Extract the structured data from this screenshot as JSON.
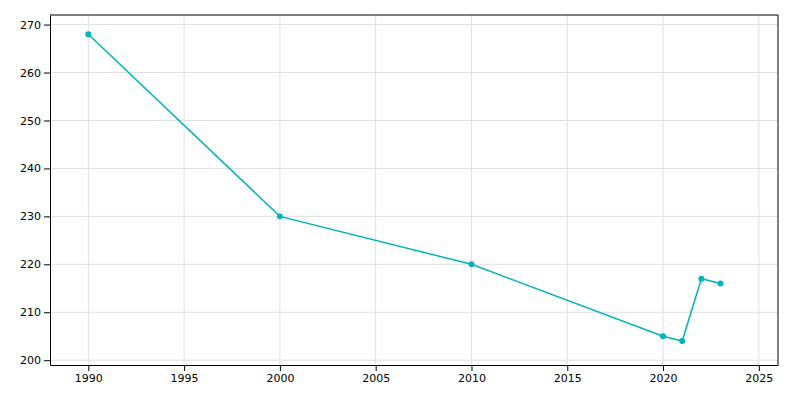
{
  "chart_data": {
    "type": "line",
    "x": [
      1990,
      2000,
      2010,
      2020,
      2021,
      2022,
      2023
    ],
    "values": [
      268,
      230,
      220,
      205,
      204,
      217,
      216
    ],
    "color": "#00b4b8",
    "marker": "circle",
    "xlim": [
      1988,
      2026
    ],
    "ylim": [
      199,
      272
    ],
    "xticks": [
      1990,
      1995,
      2000,
      2005,
      2010,
      2015,
      2020,
      2025
    ],
    "yticks": [
      200,
      210,
      220,
      230,
      240,
      250,
      260,
      270
    ],
    "grid": true
  }
}
